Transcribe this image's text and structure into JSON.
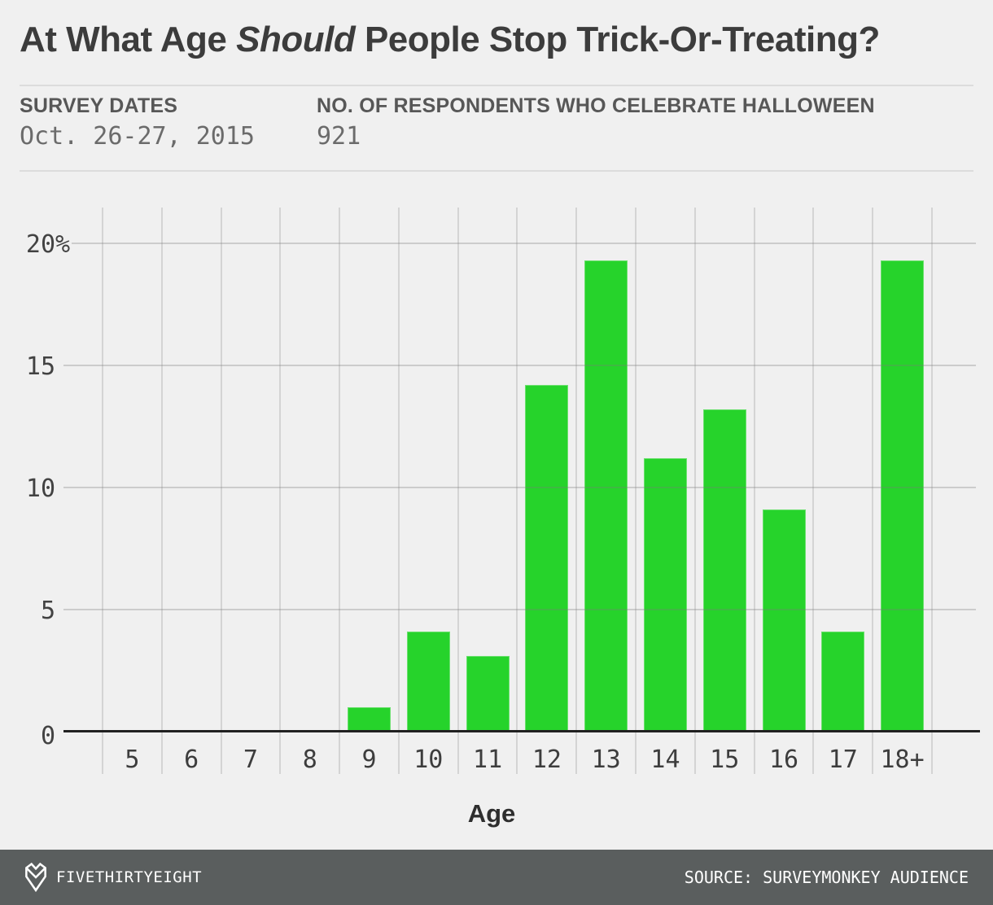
{
  "header": {
    "title_pre": "At What Age ",
    "title_emph": "Should",
    "title_post": " People Stop Trick-Or-Treating?",
    "meta": [
      {
        "label": "SURVEY DATES",
        "value": "Oct. 26-27, 2015"
      },
      {
        "label": "NO. OF RESPONDENTS WHO CELEBRATE HALLOWEEN",
        "value": "921"
      }
    ]
  },
  "chart_data": {
    "type": "bar",
    "title": "At What Age Should People Stop Trick-Or-Treating?",
    "categories": [
      "5",
      "6",
      "7",
      "8",
      "9",
      "10",
      "11",
      "12",
      "13",
      "14",
      "15",
      "16",
      "17",
      "18+"
    ],
    "values": [
      0,
      0,
      0,
      0,
      1.0,
      4.1,
      3.1,
      14.2,
      19.3,
      11.2,
      13.2,
      9.1,
      4.1,
      19.3
    ],
    "xlabel": "Age",
    "ylabel": "",
    "ylim": [
      0,
      21.5
    ],
    "yticks": [
      {
        "v": 0,
        "label": "0"
      },
      {
        "v": 5,
        "label": "5"
      },
      {
        "v": 10,
        "label": "10"
      },
      {
        "v": 15,
        "label": "15"
      },
      {
        "v": 20,
        "label": "20%"
      }
    ],
    "bar_color": "#26d32b",
    "grid": "on",
    "legend": "none"
  },
  "footer": {
    "brand": "FIVETHIRTYEIGHT",
    "source": "SOURCE: SURVEYMONKEY AUDIENCE",
    "bg_color": "#5a5e5e"
  }
}
